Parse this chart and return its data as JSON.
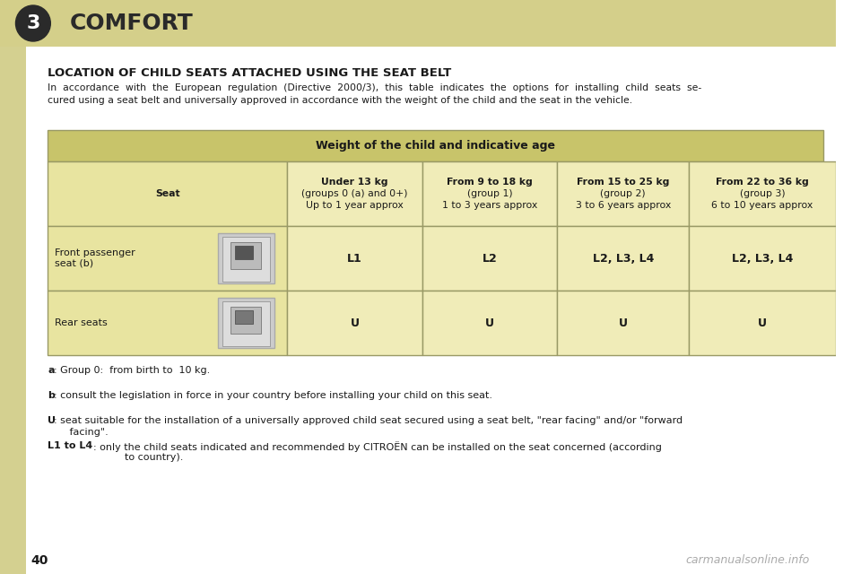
{
  "bg_color": "#f5f5dc",
  "page_bg": "#ffffff",
  "header_bg": "#d4cf8a",
  "header_text": "COMFORT",
  "chapter_num": "3",
  "title": "LOCATION OF CHILD SEATS ATTACHED USING THE SEAT BELT",
  "intro_text": "In  accordance  with  the  European  regulation  (Directive  2000/3),  this  table  indicates  the  options  for  installing  child  seats  se-\ncured using a seat belt and universally approved in accordance with the weight of the child and the seat in the vehicle.",
  "table_header_bg": "#c8c46a",
  "table_cell_bg_dark": "#e8e4a0",
  "table_cell_bg_light": "#f0ecb8",
  "table_border": "#999966",
  "table_main_header": "Weight of the child and indicative age",
  "col_headers": [
    "Seat",
    "Under 13 kg\n(groups 0 (a) and 0+)\nUp to 1 year approx",
    "From 9 to 18 kg\n(group 1)\n1 to 3 years approx",
    "From 15 to 25 kg\n(group 2)\n3 to 6 years approx",
    "From 22 to 36 kg\n(group 3)\n6 to 10 years approx"
  ],
  "row1_label": "Front passenger\nseat (b)",
  "row1_values": [
    "L1",
    "L2",
    "L2, L3, L4",
    "L2, L3, L4"
  ],
  "row2_label": "Rear seats",
  "row2_values": [
    "U",
    "U",
    "U",
    "U"
  ],
  "footnotes": [
    [
      "a",
      ": Group 0:  from birth to  10 kg."
    ],
    [
      "b",
      ": consult the legislation in force in your country before installing your child on this seat."
    ],
    [
      "U",
      ": seat suitable for the installation of a universally approved child seat secured using a seat belt, \"rear facing\" and/or \"forward\n     facing\"."
    ],
    [
      "L1 to L4",
      ": only the child seats indicated and recommended by CITROËN can be installed on the seat concerned (according\n          to country)."
    ]
  ],
  "page_num": "40",
  "watermark": "carmanualsonline.info",
  "left_tab_color": "#c8c46a",
  "side_bar_color": "#d4d090"
}
